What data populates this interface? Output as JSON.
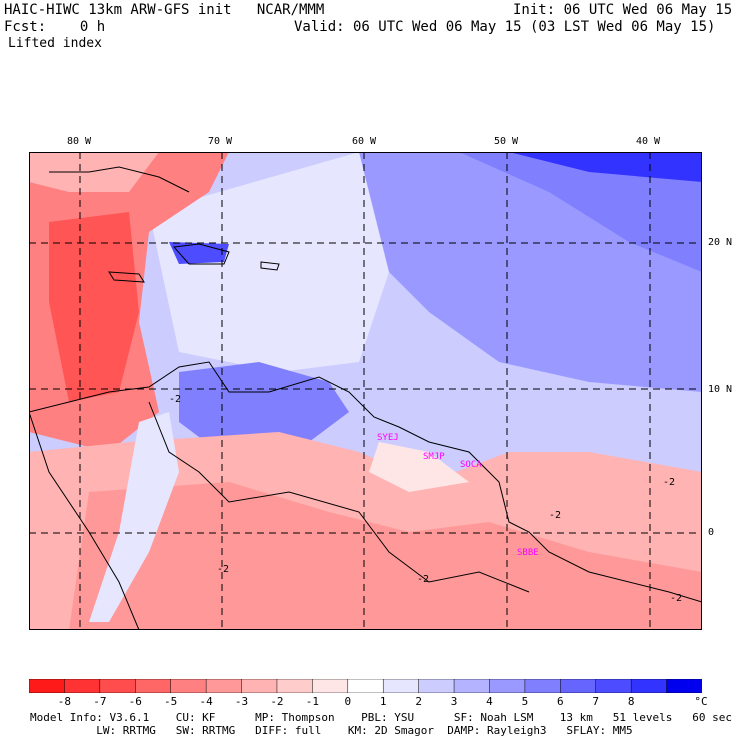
{
  "header": {
    "model_title": "HAIC-HIWC 13km ARW-GFS init   NCAR/MMM",
    "init_text": "Init: 06 UTC Wed 06 May 15",
    "fcst_text": "Fcst:    0 h",
    "valid_text": "Valid: 06 UTC Wed 06 May 15 (03 LST Wed 06 May 15)",
    "field_name": "Lifted index"
  },
  "map": {
    "lon_labels": [
      "80 W",
      "70 W",
      "60 W",
      "50 W",
      "40 W"
    ],
    "lat_labels": [
      "20 N",
      "10 N",
      "0"
    ],
    "station_labels": [
      "SYEJ",
      "SMJP",
      "SOCA",
      "SBBE"
    ],
    "contour_labels": [
      "-2",
      "-2",
      "-2",
      "-2",
      "-2",
      "-2"
    ],
    "colors": {
      "grid": "#000000",
      "coast": "#000000",
      "station": "#ff00ff"
    }
  },
  "colorbar": {
    "labels": [
      "-8",
      "-7",
      "-6",
      "-5",
      "-4",
      "-3",
      "-2",
      "-1",
      "0",
      "1",
      "2",
      "3",
      "4",
      "5",
      "6",
      "7",
      "8"
    ],
    "unit": "°C",
    "colors": [
      "#ff1a1a",
      "#ff3333",
      "#ff4c4c",
      "#ff6666",
      "#ff8080",
      "#ff9999",
      "#ffb3b3",
      "#ffcccc",
      "#ffe6e6",
      "#ffffff",
      "#e6e6ff",
      "#ccccff",
      "#b3b3ff",
      "#9999ff",
      "#8080ff",
      "#6666ff",
      "#4d4dff",
      "#3333ff",
      "#0000ee"
    ]
  },
  "footer": {
    "line1": "Model Info: V3.6.1    CU: KF      MP: Thompson    PBL: YSU      SF: Noah LSM    13 km   51 levels   60 sec",
    "line2": "          LW: RRTMG   SW: RRTMG   DIFF: full    KM: 2D Smagor  DAMP: Rayleigh3   SFLAY: MM5"
  }
}
